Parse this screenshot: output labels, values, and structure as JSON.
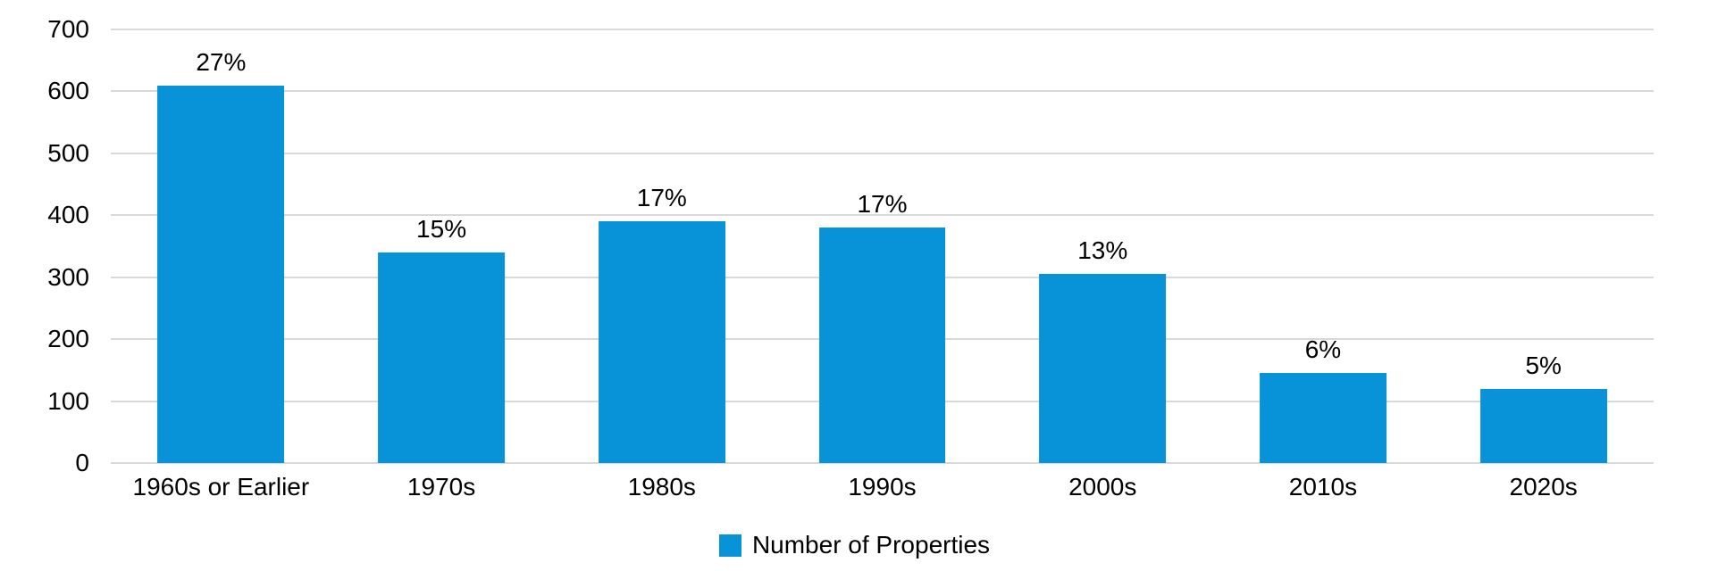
{
  "chart_data": {
    "type": "bar",
    "title": "",
    "categories": [
      "1960s or Earlier",
      "1970s",
      "1980s",
      "1990s",
      "2000s",
      "2010s",
      "2020s"
    ],
    "values": [
      610,
      340,
      390,
      380,
      305,
      145,
      120
    ],
    "bar_labels": [
      "27%",
      "15%",
      "17%",
      "17%",
      "13%",
      "6%",
      "5%"
    ],
    "series_name": "Number of Properties",
    "xlabel": "",
    "ylabel": "",
    "y_ticks": [
      0,
      100,
      200,
      300,
      400,
      500,
      600,
      700
    ],
    "ylim": [
      0,
      700
    ],
    "grid": "horizontal",
    "legend_position": "bottom-center",
    "colors": {
      "bar": "#0892D8",
      "gridline": "#D9D9D9",
      "text": "#000000",
      "background": "#FFFFFF"
    }
  },
  "legend": {
    "label": "Number of Properties"
  }
}
